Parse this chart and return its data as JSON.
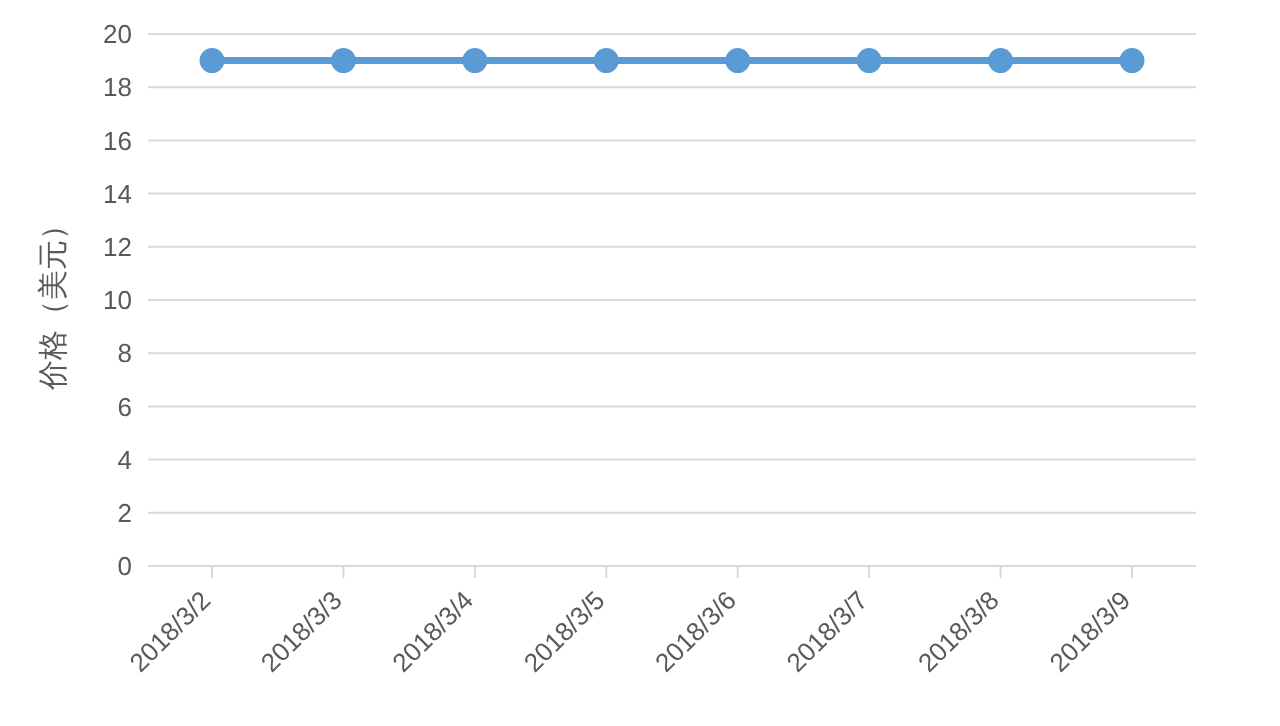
{
  "chart_data": {
    "type": "line",
    "ylabel": "价格（美元）",
    "categories": [
      "2018/3/2",
      "2018/3/3",
      "2018/3/4",
      "2018/3/5",
      "2018/3/6",
      "2018/3/7",
      "2018/3/8",
      "2018/3/9"
    ],
    "series": [
      {
        "color": "#5b9bd5",
        "values": [
          19,
          19,
          19,
          19,
          19,
          19,
          19,
          19
        ]
      }
    ],
    "ylim": [
      0,
      20
    ],
    "yticks": [
      0,
      2,
      4,
      6,
      8,
      10,
      12,
      14,
      16,
      18,
      20
    ],
    "grid": "y",
    "legend": false,
    "marker": "circle",
    "line_style": "solid"
  }
}
